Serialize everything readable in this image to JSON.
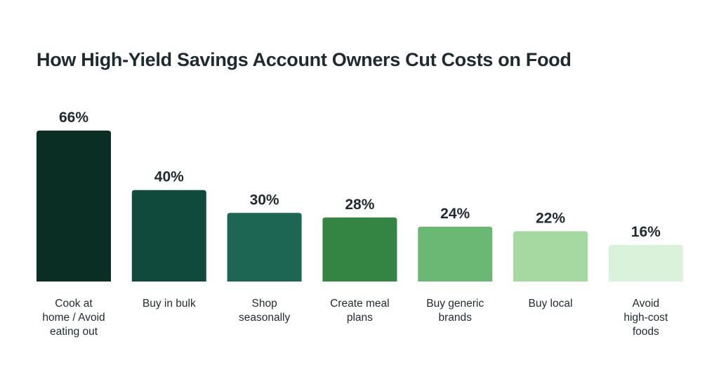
{
  "chart_data": {
    "type": "bar",
    "title": "How High-Yield Savings Account Owners Cut Costs on Food",
    "categories": [
      [
        "Cook at",
        "home / Avoid",
        "eating out"
      ],
      [
        "Buy in bulk"
      ],
      [
        "Shop",
        "seasonally"
      ],
      [
        "Create meal",
        "plans"
      ],
      [
        "Buy generic",
        "brands"
      ],
      [
        "Buy local"
      ],
      [
        "Avoid",
        "high-cost",
        "foods"
      ]
    ],
    "values": [
      66,
      40,
      30,
      28,
      24,
      22,
      16
    ],
    "value_labels": [
      "66%",
      "40%",
      "30%",
      "28%",
      "24%",
      "22%",
      "16%"
    ],
    "bar_colors": [
      "#0a2e24",
      "#0f4a3c",
      "#1e6654",
      "#348543",
      "#6bb874",
      "#a6d9a1",
      "#daf1da"
    ],
    "ylim": [
      0,
      66
    ],
    "grid": false,
    "legend": "none"
  }
}
